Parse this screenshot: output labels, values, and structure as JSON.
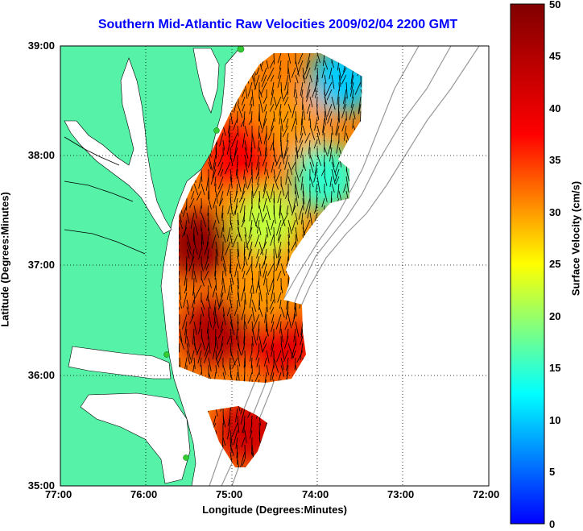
{
  "title": "Southern Mid-Atlantic Raw Velocities 2009/02/04 2200 GMT",
  "xlabel": "Longitude (Degrees:Minutes)",
  "ylabel": "Latitude (Degrees:Minutes)",
  "x_ticks": [
    "77:00",
    "76:00",
    "75:00",
    "74:00",
    "73:00",
    "72:00"
  ],
  "y_ticks": [
    "39:00",
    "38:00",
    "37:00",
    "36:00",
    "35:00"
  ],
  "colorbar": {
    "label": "Surface Velocity (cm/s)",
    "ticks": [
      "50",
      "45",
      "40",
      "35",
      "30",
      "25",
      "20",
      "15",
      "10",
      "5",
      "0"
    ],
    "min": 0,
    "max": 50,
    "colormap": "jet"
  },
  "colors": {
    "land": "#55f2a8",
    "water": "#ffffff",
    "title": "#0000ff",
    "bathymetry": "#999999",
    "station": "#33cc33"
  },
  "chart_data": {
    "type": "heatmap",
    "xlim": [
      -77.0,
      -72.0
    ],
    "ylim": [
      35.0,
      39.0
    ],
    "grid": true,
    "fields": [
      {
        "name": "field-north-east",
        "lon": -73.7,
        "lat": 38.7,
        "speed": 10
      },
      {
        "name": "field-north-center",
        "lon": -74.3,
        "lat": 38.3,
        "speed": 30
      },
      {
        "name": "field-north-west",
        "lon": -74.9,
        "lat": 38.0,
        "speed": 38
      },
      {
        "name": "field-mid-east",
        "lon": -73.9,
        "lat": 37.8,
        "speed": 15
      },
      {
        "name": "field-mid-center",
        "lon": -74.6,
        "lat": 37.4,
        "speed": 22
      },
      {
        "name": "field-west-core",
        "lon": -75.4,
        "lat": 37.2,
        "speed": 48
      },
      {
        "name": "field-southwest",
        "lon": -75.2,
        "lat": 36.4,
        "speed": 45
      },
      {
        "name": "field-south-east",
        "lon": -74.4,
        "lat": 36.3,
        "speed": 40
      },
      {
        "name": "field-south-mid",
        "lon": -74.6,
        "lat": 36.8,
        "speed": 30
      },
      {
        "name": "field-far-south",
        "lon": -74.8,
        "lat": 35.5,
        "speed": 42
      }
    ]
  }
}
